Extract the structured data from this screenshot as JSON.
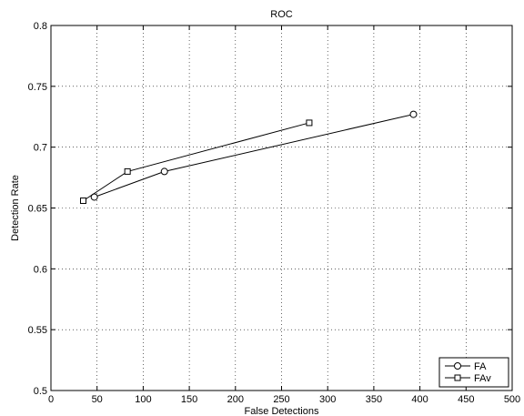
{
  "chart_data": {
    "type": "line",
    "title": "ROC",
    "xlabel": "False Detections",
    "ylabel": "Detection Rate",
    "xlim": [
      0,
      500
    ],
    "ylim": [
      0.5,
      0.8
    ],
    "xticks": [
      0,
      50,
      100,
      150,
      200,
      250,
      300,
      350,
      400,
      450,
      500
    ],
    "yticks": [
      0.5,
      0.55,
      0.6,
      0.65,
      0.7,
      0.75,
      0.8
    ],
    "xtick_labels": [
      "0",
      "50",
      "100",
      "150",
      "200",
      "250",
      "300",
      "350",
      "400",
      "450",
      "500"
    ],
    "ytick_labels": [
      "0.5",
      "0.55",
      "0.6",
      "0.65",
      "0.7",
      "0.75",
      "0.8"
    ],
    "grid": true,
    "legend": "bottom-right",
    "series": [
      {
        "name": "FA",
        "marker": "circle",
        "color": "#000000",
        "x": [
          47,
          123,
          393
        ],
        "y": [
          0.659,
          0.68,
          0.727
        ]
      },
      {
        "name": "FAv",
        "marker": "square",
        "color": "#000000",
        "x": [
          35,
          83,
          280
        ],
        "y": [
          0.656,
          0.68,
          0.72
        ]
      }
    ]
  }
}
